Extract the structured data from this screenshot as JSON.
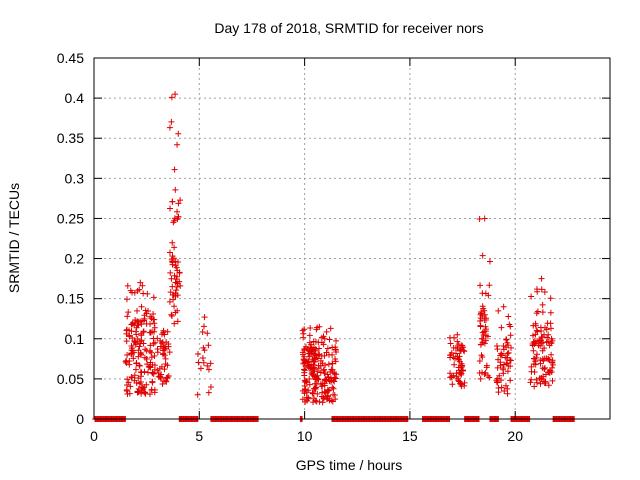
{
  "chart_data": {
    "type": "scatter",
    "title": "Day 178 of 2018, SRMTID for receiver nors",
    "xlabel": "GPS time / hours",
    "ylabel": "SRMTID / TECUs",
    "xlim": [
      0,
      24.5
    ],
    "ylim": [
      0,
      0.45
    ],
    "x_ticks": [
      0,
      5,
      10,
      15,
      20
    ],
    "x_tick_labels": [
      "0",
      "5",
      "10",
      "15",
      "20"
    ],
    "y_ticks": [
      0,
      0.05,
      0.1,
      0.15,
      0.2,
      0.25,
      0.3,
      0.35,
      0.4,
      0.45
    ],
    "y_tick_labels": [
      "0",
      "0.05",
      "0.1",
      "0.15",
      "0.2",
      "0.25",
      "0.3",
      "0.35",
      "0.4",
      "0.45"
    ],
    "grid": true,
    "marker": "+",
    "series_color": "#e00000",
    "series": [
      {
        "name": "SRMTID",
        "clusters": [
          {
            "x_range": [
              1.5,
              2.9
            ],
            "n": 150,
            "y_range": [
              0.03,
              0.13
            ],
            "peak": 0.17
          },
          {
            "x_range": [
              3.0,
              3.6
            ],
            "n": 40,
            "y_range": [
              0.04,
              0.1
            ],
            "peak": 0.11
          },
          {
            "x_range": [
              3.6,
              4.1
            ],
            "n": 55,
            "y_range": [
              0.1,
              0.28
            ],
            "peak": 0.405
          },
          {
            "x_range": [
              4.9,
              5.6
            ],
            "n": 14,
            "y_range": [
              0.03,
              0.1
            ],
            "peak": 0.127
          },
          {
            "x_range": [
              9.9,
              11.5
            ],
            "n": 190,
            "y_range": [
              0.02,
              0.09
            ],
            "peak": 0.115
          },
          {
            "x_range": [
              16.9,
              17.6
            ],
            "n": 55,
            "y_range": [
              0.04,
              0.09
            ],
            "peak": 0.105
          },
          {
            "x_range": [
              18.3,
              18.8
            ],
            "n": 45,
            "y_range": [
              0.05,
              0.16
            ],
            "peak": 0.25
          },
          {
            "x_range": [
              19.1,
              19.8
            ],
            "n": 50,
            "y_range": [
              0.03,
              0.1
            ],
            "peak": 0.14
          },
          {
            "x_range": [
              20.7,
              21.8
            ],
            "n": 95,
            "y_range": [
              0.04,
              0.12
            ],
            "peak": 0.175
          }
        ],
        "zero_segments": [
          [
            0.05,
            1.5
          ],
          [
            4.05,
            4.95
          ],
          [
            5.55,
            7.8
          ],
          [
            9.8,
            9.9
          ],
          [
            11.3,
            14.9
          ],
          [
            15.6,
            16.9
          ],
          [
            17.6,
            18.3
          ],
          [
            18.8,
            19.2
          ],
          [
            19.8,
            20.7
          ],
          [
            21.8,
            22.8
          ]
        ]
      }
    ]
  }
}
